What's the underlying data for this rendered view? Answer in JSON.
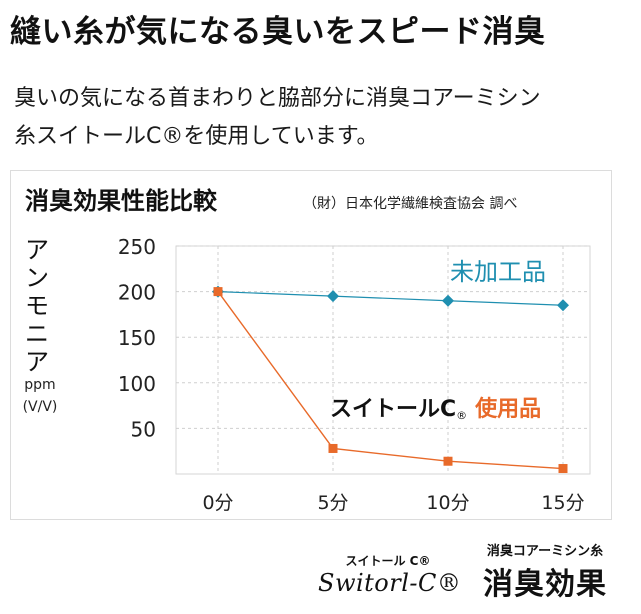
{
  "headline": "縫い糸が気になる臭いをスピード消臭",
  "intro": {
    "line1": "臭いの気になる首まわりと脇部分に消臭コアーミシン",
    "line2": "糸スイトールC®を使用しています。"
  },
  "chart_data": {
    "type": "line",
    "title": "消臭効果性能比較",
    "source": "（財）日本化学繊維検査協会 調べ",
    "ylabel_lines": [
      "ア",
      "ン",
      "モ",
      "ニ",
      "ア"
    ],
    "yunit_lines": [
      "ppm",
      "(V/V)"
    ],
    "x": [
      0,
      5,
      10,
      15
    ],
    "x_tick_labels": [
      "0分",
      "5分",
      "10分",
      "15分"
    ],
    "y_ticks": [
      250,
      200,
      150,
      100,
      50
    ],
    "ylim": [
      0,
      250
    ],
    "grid": true,
    "series": [
      {
        "name": "未加工品",
        "values": [
          200,
          195,
          190,
          185
        ],
        "color": "#1f8fb0",
        "marker": "diamond"
      },
      {
        "name": "スイトールC® 使用品",
        "name_prefix": "スイトールC",
        "name_mark": "®",
        "name_suffix": "使用品",
        "values": [
          200,
          28,
          14,
          6
        ],
        "color": "#e86a2a",
        "marker": "square"
      }
    ]
  },
  "footer": {
    "brand_kana": "スイトール C®",
    "brand_logo": "Switorl-C®",
    "effect_small": "消臭コアーミシン糸",
    "effect_big": "消臭効果"
  }
}
